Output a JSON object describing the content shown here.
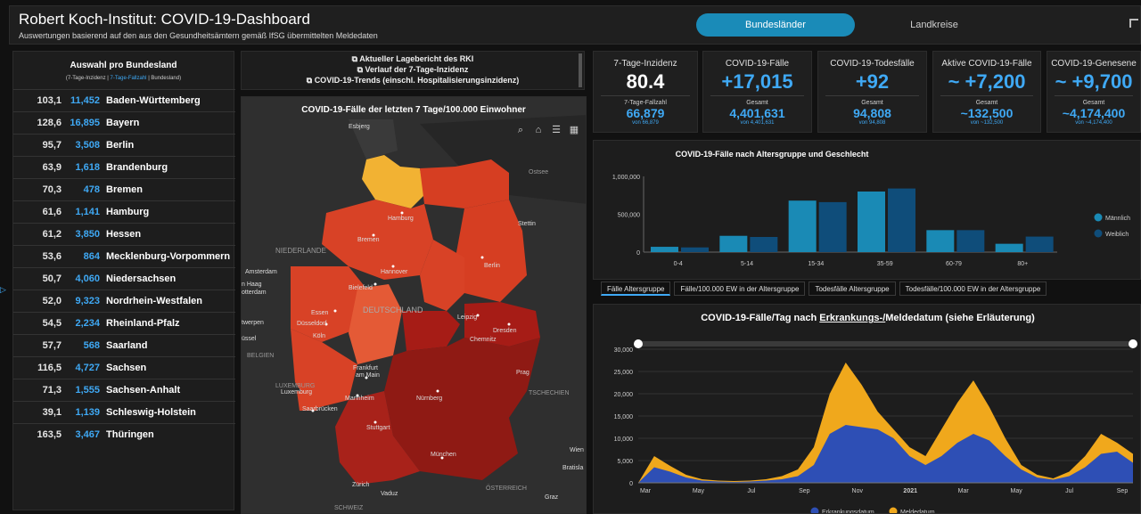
{
  "header": {
    "title": "Robert Koch-Institut: COVID-19-Dashboard",
    "subtitle": "Auswertungen basierend auf den aus den Gesundheitsämtern gemäß IfSG übermittelten Meldedaten",
    "tab_active": "Bundesländer",
    "tab_inactive": "Landkreise"
  },
  "left_panel": {
    "title": "Auswahl pro Bundesland",
    "sub_a": "(7-Tage-Inzidenz |",
    "sub_b": "7-Tage-Fallzahl",
    "sub_c": "| Bundesland)",
    "rows": [
      {
        "inz": "103,1",
        "cases": "11,452",
        "name": "Baden-Württemberg"
      },
      {
        "inz": "128,6",
        "cases": "16,895",
        "name": "Bayern"
      },
      {
        "inz": "95,7",
        "cases": "3,508",
        "name": "Berlin"
      },
      {
        "inz": "63,9",
        "cases": "1,618",
        "name": "Brandenburg"
      },
      {
        "inz": "70,3",
        "cases": "478",
        "name": "Bremen"
      },
      {
        "inz": "61,6",
        "cases": "1,141",
        "name": "Hamburg"
      },
      {
        "inz": "61,2",
        "cases": "3,850",
        "name": "Hessen"
      },
      {
        "inz": "53,6",
        "cases": "864",
        "name": "Mecklenburg-Vorpommern"
      },
      {
        "inz": "50,7",
        "cases": "4,060",
        "name": "Niedersachsen"
      },
      {
        "inz": "52,0",
        "cases": "9,323",
        "name": "Nordrhein-Westfalen"
      },
      {
        "inz": "54,5",
        "cases": "2,234",
        "name": "Rheinland-Pfalz"
      },
      {
        "inz": "57,7",
        "cases": "568",
        "name": "Saarland"
      },
      {
        "inz": "116,5",
        "cases": "4,727",
        "name": "Sachsen"
      },
      {
        "inz": "71,3",
        "cases": "1,555",
        "name": "Sachsen-Anhalt"
      },
      {
        "inz": "39,1",
        "cases": "1,139",
        "name": "Schleswig-Holstein"
      },
      {
        "inz": "163,5",
        "cases": "3,467",
        "name": "Thüringen"
      }
    ]
  },
  "links": {
    "l1": "Aktueller Lagebericht des RKI",
    "l2": "Verlauf der 7-Tage-Inzidenz",
    "l3": "COVID-19-Trends (einschl. Hospitalisierungsinzidenz)"
  },
  "map": {
    "title": "COVID-19-Fälle der letzten 7 Tage/100.000 Einwohner",
    "labels": {
      "esbjerg": "Esbjerg",
      "ostsee": "Ostsee",
      "hamburg": "Hamburg",
      "stettin": "Stettin",
      "bremen": "Bremen",
      "niederlande": "NIEDERLANDE",
      "hannover": "Hannover",
      "berlin": "Berlin",
      "amsterdam": "Amsterdam",
      "haag": "n Haag",
      "rotterdam": "otterdam",
      "bielefeld": "Bielefeld",
      "essen": "Essen",
      "duesseldorf": "Düsseldorf",
      "deutschland": "DEUTSCHLAND",
      "leipzig": "Leipzig",
      "dresden": "Dresden",
      "antwerpen": "twerpen",
      "koeln": "Köln",
      "chemnitz": "Chemnitz",
      "bruessel": "üssel",
      "belgien": "BELGIEN",
      "prag": "Prag",
      "frankfurt": "Frankfurt",
      "am_main": "am Main",
      "luxemburg_cap": "LUXEMBURG",
      "luxemburg": "Luxemburg",
      "tschechien": "TSCHECHIEN",
      "mannheim": "Mannheim",
      "nuernberg": "Nürnberg",
      "saarbruecken": "Saarbrücken",
      "stuttgart": "Stuttgart",
      "wien": "Wien",
      "muenchen": "München",
      "bratislava": "Bratisla",
      "zuerich": "Zürich",
      "vaduz": "Vaduz",
      "oesterreich": "ÖSTERREICH",
      "graz": "Graz",
      "schweiz": "SCHWEIZ"
    }
  },
  "kpis": [
    {
      "label": "7-Tage-Inzidenz",
      "value": "80.4",
      "sublabel": "7-Tage-Fallzahl",
      "subvalue": "66,879",
      "small": "von 66,879"
    },
    {
      "label": "COVID-19-Fälle",
      "value": "+17,015",
      "sublabel": "Gesamt",
      "subvalue": "4,401,631",
      "small": "von 4,401,631"
    },
    {
      "label": "COVID-19-Todesfälle",
      "value": "+92",
      "sublabel": "Gesamt",
      "subvalue": "94,808",
      "small": "von 94,808"
    },
    {
      "label": "Aktive COVID-19-Fälle",
      "value": "~ +7,200",
      "sublabel": "Gesamt",
      "subvalue": "~132,500",
      "small": "von ~132,500"
    },
    {
      "label": "COVID-19-Genesene",
      "value": "~ +9,700",
      "sublabel": "Gesamt",
      "subvalue": "~4,174,400",
      "small": "von ~4,174,400"
    }
  ],
  "age_chart_title": "COVID-19-Fälle nach Altersgruppe und Geschlecht",
  "age_tabs": [
    "Fälle Altersgruppe",
    "Fälle/100.000 EW in der Altersgruppe",
    "Todesfälle Altersgruppe",
    "Todesfälle/100.000 EW in der Altersgruppe"
  ],
  "daily_title_a": "COVID-19-Fälle/Tag nach ",
  "daily_title_b": "Erkrankungs-/",
  "daily_title_c": "Meldedatum (siehe Erläuterung)",
  "colors": {
    "accent": "#1a8bb8",
    "male": "#1a8ab5",
    "female": "#0f4d7a",
    "erkrankung": "#2e4fb5",
    "melde": "#f0a81c"
  },
  "chart_data": [
    {
      "type": "bar",
      "title": "COVID-19-Fälle nach Altersgruppe und Geschlecht",
      "categories": [
        "0-4",
        "5-14",
        "15-34",
        "35-59",
        "60-79",
        "80+"
      ],
      "series": [
        {
          "name": "Männlich",
          "values": [
            70000,
            215000,
            680000,
            800000,
            290000,
            110000
          ]
        },
        {
          "name": "Weiblich",
          "values": [
            62000,
            200000,
            660000,
            840000,
            290000,
            205000
          ]
        }
      ],
      "yticks": [
        "1,000,000",
        "500,000",
        "0"
      ],
      "ylim": [
        0,
        1000000
      ],
      "grid": false,
      "legend": "right"
    },
    {
      "type": "area",
      "title": "COVID-19-Fälle/Tag nach Erkrankungs-/Meldedatum (siehe Erläuterung)",
      "x_ticks": [
        "Mar",
        "May",
        "Jul",
        "Sep",
        "Nov",
        "2021",
        "Mar",
        "May",
        "Jul",
        "Sep"
      ],
      "yticks": [
        "30,000",
        "25,000",
        "20,000",
        "15,000",
        "10,000",
        "5,000",
        "0"
      ],
      "ylim": [
        0,
        30000
      ],
      "legend": "bottom",
      "series": [
        {
          "name": "Erkrankungsdatum",
          "values": [
            0,
            3500,
            2500,
            1200,
            500,
            300,
            200,
            300,
            500,
            800,
            1500,
            4000,
            11000,
            13000,
            12500,
            12000,
            10000,
            6000,
            4000,
            6000,
            9000,
            11000,
            9500,
            6000,
            3000,
            1200,
            700,
            1500,
            3500,
            6500,
            7000,
            4500
          ]
        },
        {
          "name": "Meldedatum",
          "values": [
            0,
            6000,
            3800,
            1800,
            800,
            500,
            400,
            500,
            800,
            1500,
            3000,
            8000,
            20000,
            27000,
            22000,
            16000,
            12000,
            8000,
            6000,
            12000,
            18000,
            23000,
            17000,
            10000,
            4000,
            1800,
            1000,
            2500,
            6000,
            11000,
            9000,
            6500
          ]
        }
      ]
    }
  ]
}
